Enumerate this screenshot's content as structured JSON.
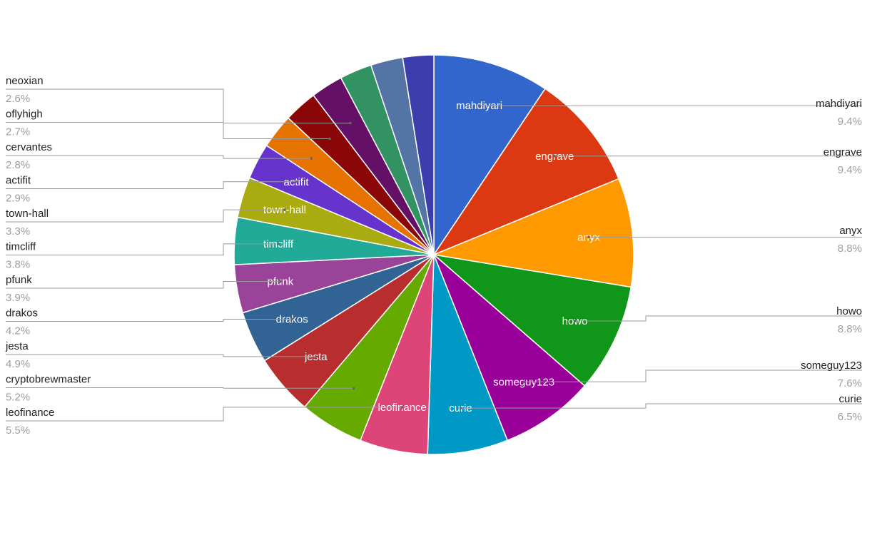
{
  "chart_data": {
    "type": "pie",
    "title": "",
    "legend": "labeled leader lines on both sides",
    "slices": [
      {
        "name": "mahdiyari",
        "value": 9.4,
        "label": "9.4%",
        "color": "#3366cc",
        "inside": true
      },
      {
        "name": "engrave",
        "value": 9.4,
        "label": "9.4%",
        "color": "#dc3912",
        "inside": true
      },
      {
        "name": "anyx",
        "value": 8.8,
        "label": "8.8%",
        "color": "#ff9900",
        "inside": true
      },
      {
        "name": "howo",
        "value": 8.8,
        "label": "8.8%",
        "color": "#109618",
        "inside": true
      },
      {
        "name": "someguy123",
        "value": 7.6,
        "label": "7.6%",
        "color": "#990099",
        "inside": true
      },
      {
        "name": "curie",
        "value": 6.5,
        "label": "6.5%",
        "color": "#0099c6",
        "inside": true
      },
      {
        "name": "leofinance",
        "value": 5.5,
        "label": "5.5%",
        "color": "#dd4477",
        "inside": true
      },
      {
        "name": "cryptobrewmaster",
        "value": 5.2,
        "label": "5.2%",
        "color": "#66aa00",
        "inside": false
      },
      {
        "name": "jesta",
        "value": 4.9,
        "label": "4.9%",
        "color": "#b82e2e",
        "inside": true
      },
      {
        "name": "drakos",
        "value": 4.2,
        "label": "4.2%",
        "color": "#316395",
        "inside": true
      },
      {
        "name": "pfunk",
        "value": 3.9,
        "label": "3.9%",
        "color": "#994499",
        "inside": true
      },
      {
        "name": "timcliff",
        "value": 3.8,
        "label": "3.8%",
        "color": "#22aa99",
        "inside": true
      },
      {
        "name": "town-hall",
        "value": 3.3,
        "label": "3.3%",
        "color": "#aaaa11",
        "inside": true
      },
      {
        "name": "actifit",
        "value": 2.9,
        "label": "2.9%",
        "color": "#6633cc",
        "inside": true
      },
      {
        "name": "cervantes",
        "value": 2.8,
        "label": "2.8%",
        "color": "#e67300",
        "inside": false
      },
      {
        "name": "oflyhigh",
        "value": 2.7,
        "label": "2.7%",
        "color": "#8b0707",
        "inside": false
      },
      {
        "name": "neoxian",
        "value": 2.6,
        "label": "2.6%",
        "color": "#651067",
        "inside": false
      },
      {
        "name": "",
        "value": 2.6,
        "label": "",
        "color": "#329262",
        "inside": false
      },
      {
        "name": "",
        "value": 2.6,
        "label": "",
        "color": "#5574a6",
        "inside": false
      },
      {
        "name": "",
        "value": 2.5,
        "label": "",
        "color": "#3b3eac",
        "inside": false
      }
    ]
  }
}
